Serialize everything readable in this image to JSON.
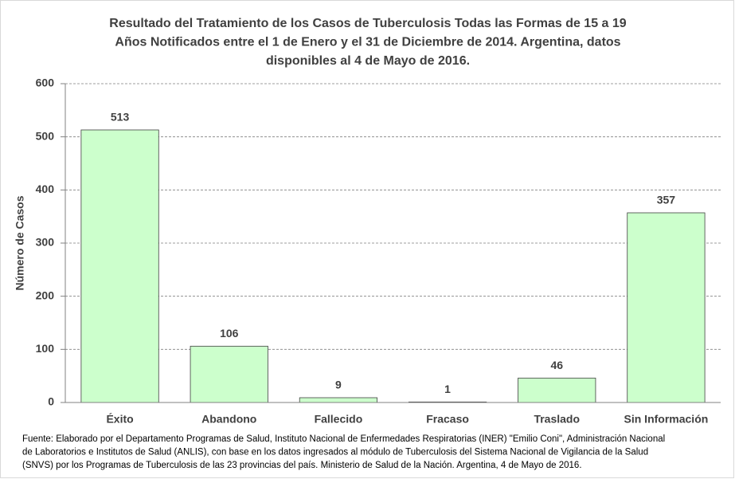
{
  "chart_data": {
    "type": "bar",
    "title": [
      "Resultado del Tratamiento de los Casos de Tuberculosis Todas las Formas de 15 a 19",
      "Años Notificados entre el 1 de Enero y el 31 de Diciembre de 2014. Argentina, datos",
      "disponibles al 4 de Mayo de 2016."
    ],
    "y_label": "Número de Casos",
    "categories": [
      "Éxito",
      "Abandono",
      "Fallecido",
      "Fracaso",
      "Traslado",
      "Sin Información"
    ],
    "values": [
      513,
      106,
      9,
      1,
      46,
      357
    ],
    "color": "#ccffcc",
    "ylim": [
      0,
      600
    ],
    "yticks": [
      0,
      100,
      200,
      300,
      400,
      500,
      600
    ],
    "grid": true,
    "source": [
      "Fuente: Elaborado por el Departamento Programas de Salud, Instituto Nacional de Enfermedades Respiratorias (INER) \"Emilio Coni\", Administración Nacional",
      "de Laboratorios e Institutos de Salud (ANLIS), con base en los datos ingresados al módulo de Tuberculosis del Sistema Nacional de Vigilancia de la Salud",
      "(SNVS) por los Programas de Tuberculosis de las 23 provincias del país. Ministerio de Salud de la Nación. Argentina,  4 de Mayo de 2016."
    ]
  }
}
